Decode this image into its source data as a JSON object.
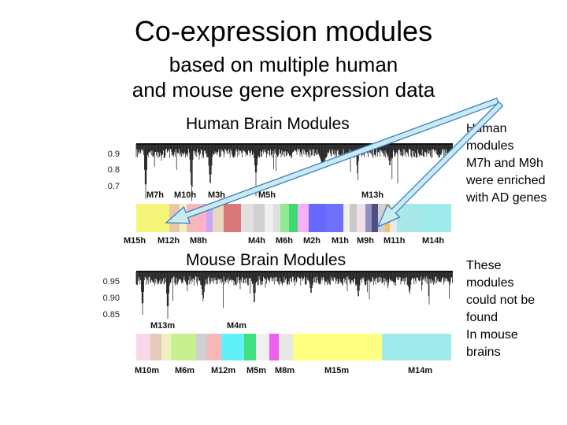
{
  "title": "Co-expression modules",
  "subtitle_lines": [
    "based on multiple human",
    "and mouse gene expression data"
  ],
  "human_panel": {
    "title": "Human Brain Modules",
    "yticks": [
      "0.9",
      "0.8",
      "0.7"
    ],
    "top_labels": [
      "M7h",
      "M10h",
      "M3h",
      "M5h",
      "M13h"
    ],
    "bottom_labels": [
      "M15h",
      "M12h",
      "M8h",
      "M4h",
      "M6h",
      "M2h",
      "M1h",
      "M9h",
      "M11h",
      "M14h"
    ],
    "colors": [
      "#f5f57a",
      "#e8c8a8",
      "#f0f0c0",
      "#f8b8b8",
      "#ffb0c8",
      "#c8a8f8",
      "#e8d8c0",
      "#d87878",
      "#e0e0e0",
      "#d0d0d0",
      "#f0f0f0",
      "#e0e0e0",
      "#90e890",
      "#40d870",
      "#f8b0f8",
      "#6868ff",
      "#7070ff",
      "#f0f0f0",
      "#c8c8c8",
      "#f0e0e8",
      "#9090c0",
      "#505080",
      "#d0d0d0",
      "#f8c060",
      "#e8e8e8",
      "#a8e8e8",
      "#a0ecec"
    ]
  },
  "mouse_panel": {
    "title": "Mouse Brain Modules",
    "yticks": [
      "0.95",
      "0.90",
      "0.85"
    ],
    "top_labels": [
      "M13m",
      "M4m"
    ],
    "bottom_labels": [
      "M10m",
      "M6m",
      "M12m",
      "M5m",
      "M8m",
      "M15m",
      "M14m"
    ],
    "colors": [
      "#f8d8e8",
      "#e8c8b8",
      "#f0f0c0",
      "#c8f090",
      "#d0d0d0",
      "#f8b8b8",
      "#60f0f8",
      "#40e080",
      "#f0f0f0",
      "#f060f0",
      "#e8e8e8",
      "#ffff80",
      "#a0ecec"
    ]
  },
  "notes": {
    "human": [
      "Human",
      "modules",
      "M7h and M9h",
      "were enriched",
      "with AD genes"
    ],
    "mouse": [
      "These",
      "modules",
      "could not be",
      "found",
      "In mouse",
      "brains"
    ]
  },
  "colors": {
    "arrow_fill": "#c8ecec",
    "arrow_stroke": "#3a7ad0"
  }
}
